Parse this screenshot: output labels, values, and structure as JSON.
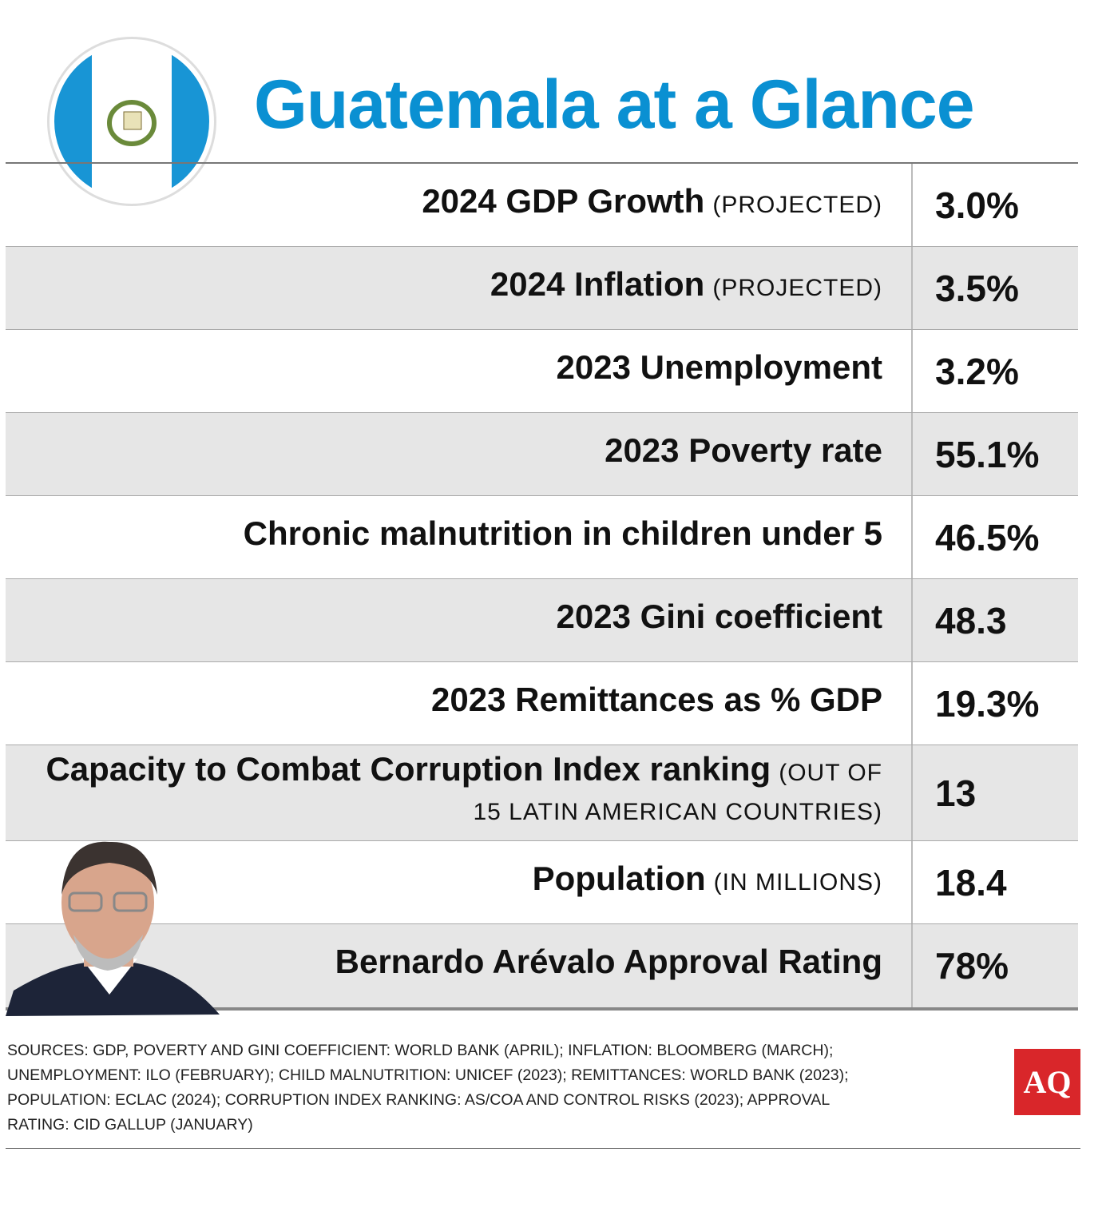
{
  "header": {
    "title": "Guatemala at a Glance"
  },
  "table": {
    "rows": [
      {
        "label": "2024 GDP Growth",
        "note": "(PROJECTED)",
        "value": "3.0%"
      },
      {
        "label": "2024 Inflation",
        "note": "(PROJECTED)",
        "value": "3.5%"
      },
      {
        "label": "2023 Unemployment",
        "value": "3.2%"
      },
      {
        "label": "2023 Poverty rate",
        "value": "55.1%"
      },
      {
        "label": "Chronic malnutrition in children under 5",
        "value": "46.5%"
      },
      {
        "label": "2023 Gini coefficient",
        "value": "48.3"
      },
      {
        "label": "2023 Remittances as % GDP",
        "value": "19.3%"
      },
      {
        "label": "Capacity to Combat Corruption Index ranking",
        "note": "(OUT OF 15 LATIN AMERICAN COUNTRIES)",
        "value": "13"
      },
      {
        "label": "Population",
        "note": "(IN MILLIONS)",
        "value": "18.4"
      },
      {
        "label": "Bernardo Arévalo Approval Rating",
        "value": "78%"
      }
    ]
  },
  "footer": {
    "sources": "SOURCES: GDP, POVERTY AND GINI COEFFICIENT: WORLD BANK (APRIL); INFLATION: BLOOMBERG (MARCH); UNEMPLOYMENT: ILO (FEBRUARY); CHILD MALNUTRITION: UNICEF (2023); REMITTANCES: WORLD BANK (2023); POPULATION: ECLAC (2024); CORRUPTION INDEX RANKING:  AS/COA AND CONTROL RISKS (2023); APPROVAL RATING: CID GALLUP (JANUARY)",
    "logo": "AQ"
  }
}
